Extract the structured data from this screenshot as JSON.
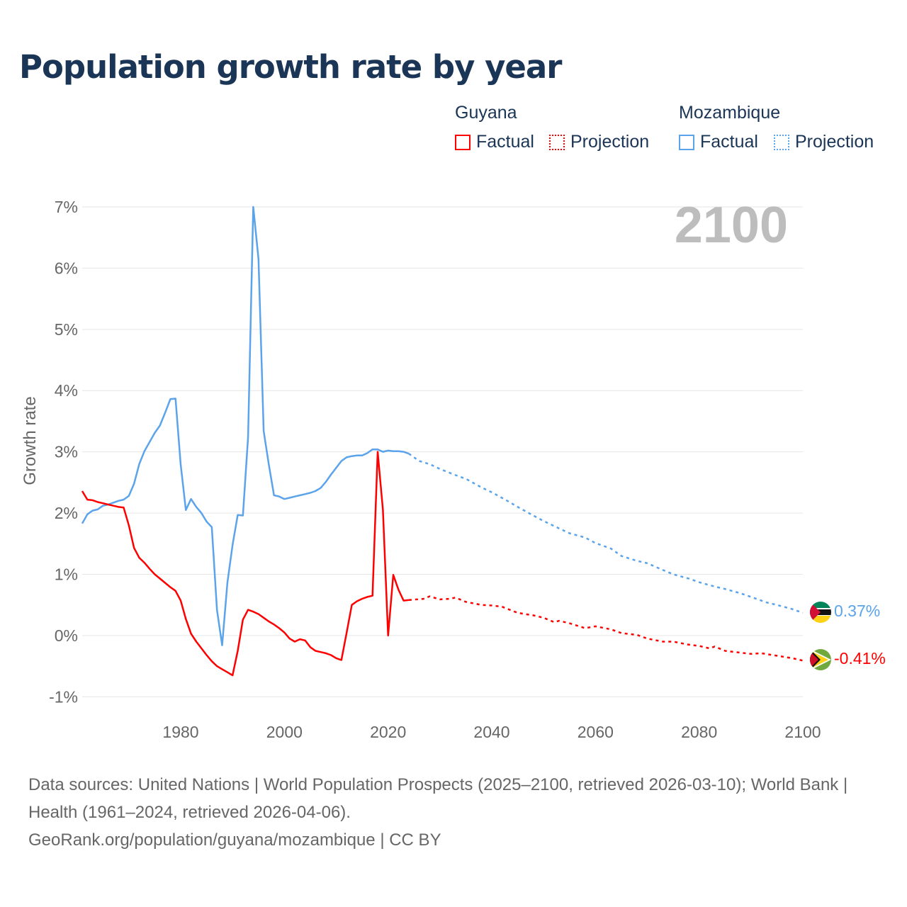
{
  "title": "Population growth rate by year",
  "legend": {
    "groups": [
      {
        "name": "Guyana",
        "color": "#ff0000",
        "factual": "Factual",
        "projection": "Projection"
      },
      {
        "name": "Mozambique",
        "color": "#5ba3ea",
        "factual": "Factual",
        "projection": "Projection"
      }
    ]
  },
  "footer": {
    "sources": "Data sources: United Nations | World Population Prospects (2025–2100, retrieved 2026-03-10); World Bank | Health (1961–2024, retrieved 2026-04-06).",
    "credit": "GeoRank.org/population/guyana/mozambique | CC BY"
  },
  "chart_data": {
    "type": "line",
    "title": "Population growth rate by year",
    "ylabel": "Growth rate",
    "xlabel": "",
    "year_label": "2100",
    "xlim": [
      1961,
      2100
    ],
    "ylim": [
      -1,
      7
    ],
    "x_ticks": [
      1980,
      2000,
      2020,
      2040,
      2060,
      2080,
      2100
    ],
    "y_ticks": [
      -1,
      0,
      1,
      2,
      3,
      4,
      5,
      6,
      7
    ],
    "y_tick_labels": [
      "-1%",
      "0%",
      "1%",
      "2%",
      "3%",
      "4%",
      "5%",
      "6%",
      "7%"
    ],
    "grid": true,
    "legend_position": "top-right",
    "series": [
      {
        "name": "Mozambique",
        "kind": "Factual",
        "color": "#5ba3ea",
        "x": [
          1961,
          1962,
          1963,
          1964,
          1965,
          1966,
          1967,
          1968,
          1969,
          1970,
          1971,
          1972,
          1973,
          1974,
          1975,
          1976,
          1977,
          1978,
          1979,
          1980,
          1981,
          1982,
          1983,
          1984,
          1985,
          1986,
          1987,
          1988,
          1989,
          1990,
          1991,
          1992,
          1993,
          1994,
          1995,
          1996,
          1997,
          1998,
          1999,
          2000,
          2001,
          2002,
          2003,
          2004,
          2005,
          2006,
          2007,
          2008,
          2009,
          2010,
          2011,
          2012,
          2013,
          2014,
          2015,
          2016,
          2017,
          2018,
          2019,
          2020,
          2021,
          2022,
          2023,
          2024
        ],
        "y": [
          1.83,
          1.98,
          2.04,
          2.06,
          2.12,
          2.14,
          2.17,
          2.2,
          2.22,
          2.28,
          2.48,
          2.8,
          3.01,
          3.16,
          3.31,
          3.43,
          3.64,
          3.86,
          3.87,
          2.79,
          2.05,
          2.23,
          2.1,
          2.0,
          1.86,
          1.77,
          0.42,
          -0.16,
          0.86,
          1.48,
          1.97,
          1.96,
          3.24,
          7.0,
          6.15,
          3.34,
          2.79,
          2.29,
          2.27,
          2.23,
          2.25,
          2.27,
          2.29,
          2.31,
          2.33,
          2.36,
          2.41,
          2.51,
          2.63,
          2.74,
          2.85,
          2.91,
          2.93,
          2.94,
          2.94,
          2.98,
          3.04,
          3.04,
          3.0,
          3.02,
          3.01,
          3.01,
          3.0,
          2.97
        ]
      },
      {
        "name": "Mozambique",
        "kind": "Projection",
        "color": "#5ba3ea",
        "x": [
          2024,
          2026,
          2028,
          2030,
          2033,
          2035,
          2038,
          2040,
          2043,
          2045,
          2048,
          2050,
          2053,
          2055,
          2058,
          2060,
          2063,
          2065,
          2068,
          2070,
          2073,
          2075,
          2078,
          2080,
          2083,
          2085,
          2088,
          2090,
          2093,
          2095,
          2098,
          2100
        ],
        "y": [
          2.97,
          2.85,
          2.8,
          2.72,
          2.62,
          2.56,
          2.42,
          2.34,
          2.2,
          2.1,
          1.96,
          1.87,
          1.75,
          1.67,
          1.6,
          1.51,
          1.42,
          1.3,
          1.22,
          1.18,
          1.07,
          1.0,
          0.93,
          0.87,
          0.8,
          0.76,
          0.69,
          0.63,
          0.54,
          0.5,
          0.43,
          0.37
        ]
      },
      {
        "name": "Guyana",
        "kind": "Factual",
        "color": "#ff0000",
        "x": [
          1961,
          1962,
          1963,
          1964,
          1965,
          1966,
          1967,
          1968,
          1969,
          1970,
          1971,
          1972,
          1973,
          1974,
          1975,
          1976,
          1977,
          1978,
          1979,
          1980,
          1981,
          1982,
          1983,
          1984,
          1985,
          1986,
          1987,
          1988,
          1989,
          1990,
          1991,
          1992,
          1993,
          1994,
          1995,
          1996,
          1997,
          1998,
          1999,
          2000,
          2001,
          2002,
          2003,
          2004,
          2005,
          2006,
          2007,
          2008,
          2009,
          2010,
          2011,
          2012,
          2013,
          2014,
          2015,
          2016,
          2017,
          2018,
          2019,
          2020,
          2021,
          2022,
          2023,
          2024
        ],
        "y": [
          2.36,
          2.22,
          2.21,
          2.18,
          2.16,
          2.14,
          2.12,
          2.1,
          2.09,
          1.8,
          1.43,
          1.27,
          1.19,
          1.09,
          1.0,
          0.93,
          0.86,
          0.79,
          0.73,
          0.57,
          0.27,
          0.03,
          -0.1,
          -0.21,
          -0.32,
          -0.42,
          -0.5,
          -0.55,
          -0.6,
          -0.65,
          -0.25,
          0.26,
          0.42,
          0.39,
          0.35,
          0.29,
          0.23,
          0.18,
          0.12,
          0.05,
          -0.05,
          -0.1,
          -0.06,
          -0.08,
          -0.19,
          -0.25,
          -0.27,
          -0.29,
          -0.32,
          -0.37,
          -0.4,
          0.04,
          0.5,
          0.56,
          0.6,
          0.63,
          0.65,
          3.0,
          2.05,
          0.0,
          0.99,
          0.75,
          0.57,
          0.58
        ]
      },
      {
        "name": "Guyana",
        "kind": "Projection",
        "color": "#ff0000",
        "x": [
          2024,
          2027,
          2028,
          2030,
          2032,
          2033,
          2035,
          2038,
          2040,
          2042,
          2045,
          2048,
          2050,
          2052,
          2053,
          2055,
          2058,
          2060,
          2063,
          2065,
          2068,
          2070,
          2073,
          2075,
          2078,
          2080,
          2082,
          2083,
          2085,
          2088,
          2090,
          2092,
          2095,
          2098,
          2100
        ],
        "y": [
          0.58,
          0.6,
          0.64,
          0.59,
          0.6,
          0.62,
          0.55,
          0.5,
          0.49,
          0.47,
          0.37,
          0.33,
          0.29,
          0.22,
          0.24,
          0.2,
          0.12,
          0.15,
          0.1,
          0.04,
          0.01,
          -0.05,
          -0.1,
          -0.1,
          -0.15,
          -0.17,
          -0.21,
          -0.18,
          -0.25,
          -0.28,
          -0.3,
          -0.29,
          -0.33,
          -0.37,
          -0.41
        ]
      }
    ],
    "end_labels": [
      {
        "country": "Mozambique",
        "value": 0.37,
        "label": "0.37%",
        "color": "#5ba3ea"
      },
      {
        "country": "Guyana",
        "value": -0.41,
        "label": "-0.41%",
        "color": "#ff0000"
      }
    ]
  }
}
